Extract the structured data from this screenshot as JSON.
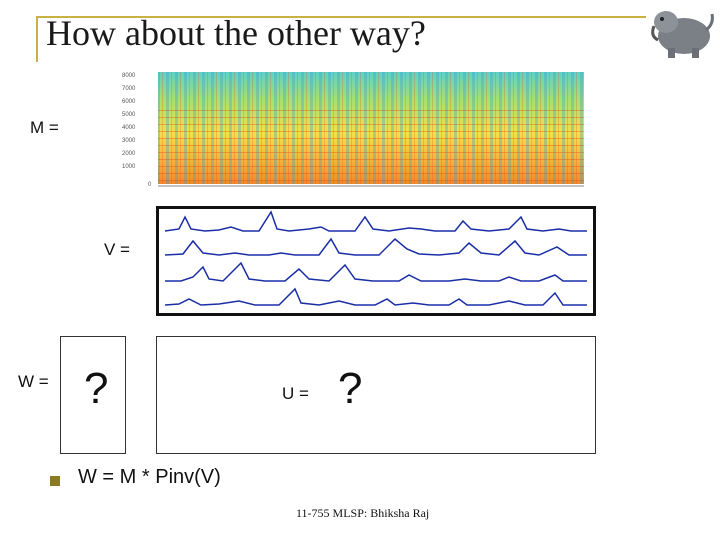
{
  "slide": {
    "title": "How about the other way?",
    "m_label": "M =",
    "v_label": "V =",
    "w_label": "W =",
    "u_label": "U =",
    "w_placeholder": "?",
    "u_placeholder": "?",
    "formula": "W = M * Pinv(V)",
    "footer": "11-755 MLSP: Bhiksha Raj"
  },
  "colors": {
    "title_rule": "#c8b240",
    "bullet": "#8a7a20",
    "curve": "#1a2ea8"
  },
  "icons": {
    "logo": "animal-logo-icon",
    "bullet": "square-bullet-icon"
  }
}
